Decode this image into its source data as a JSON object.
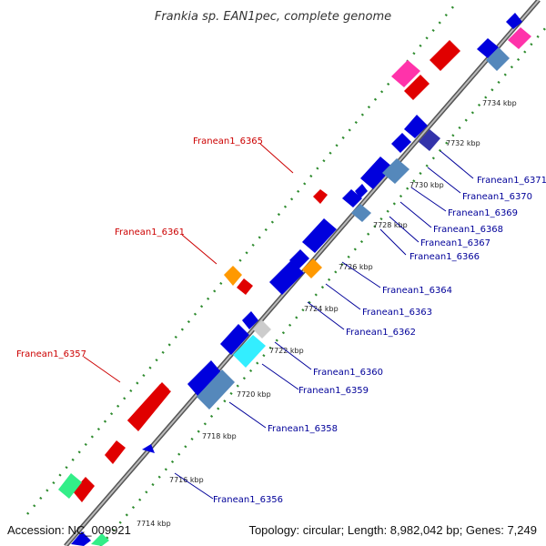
{
  "title": "Frankia sp. EAN1pec, complete genome",
  "footer": {
    "accession": "Accession: NC_009921",
    "summary": "Topology: circular; Length: 8,982,042 bp; Genes: 7,249"
  },
  "scale_ticks": [
    "7714 kbp",
    "7716 kbp",
    "7718 kbp",
    "7720 kbp",
    "7722 kbp",
    "7724 kbp",
    "7726 kbp",
    "7728 kbp",
    "7730 kbp",
    "7732 kbp",
    "7734 kbp"
  ],
  "gene_labels_forward": [
    "Franean1_6357",
    "Franean1_6361",
    "Franean1_6365"
  ],
  "gene_labels_reverse": [
    "Franean1_6356",
    "Franean1_6358",
    "Franean1_6359",
    "Franean1_6360",
    "Franean1_6362",
    "Franean1_6363",
    "Franean1_6364",
    "Franean1_6366",
    "Franean1_6367",
    "Franean1_6368",
    "Franean1_6369",
    "Franean1_6370",
    "Franean1_6371"
  ],
  "colors": {
    "backbone": "#8a8a8a",
    "dots": "#2e8b2e",
    "forward_gene": "#e00000",
    "reverse_gene": "#0000dd",
    "pink": "#ff33aa",
    "orange": "#ff9900",
    "steelblue": "#5588bb",
    "cyan": "#33eeff",
    "green": "#33ee88",
    "gray": "#cccccc"
  }
}
